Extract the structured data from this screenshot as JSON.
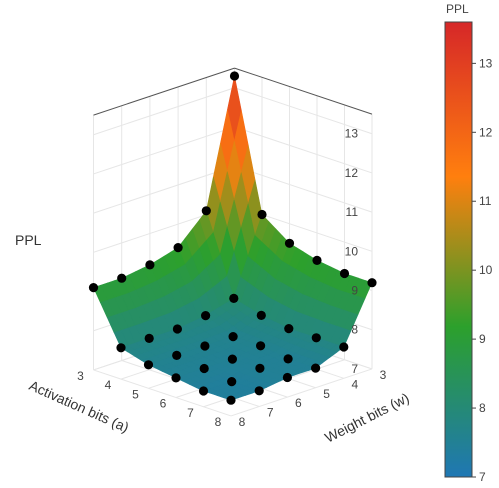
{
  "chart_data": {
    "type": "surface",
    "title": "",
    "zlabel": "PPL",
    "xlabel": "Weight bits (w)",
    "ylabel": "Activation bits (a)",
    "x_ticks": [
      "3",
      "4",
      "5",
      "6",
      "7",
      "8"
    ],
    "y_ticks": [
      "3",
      "4",
      "5",
      "6",
      "7",
      "8"
    ],
    "z_ticks": [
      "7",
      "8",
      "9",
      "10",
      "11",
      "12",
      "13"
    ],
    "zlim": [
      7,
      13.5
    ],
    "colorbar": {
      "title": "PPL",
      "ticks": [
        "7",
        "8",
        "9",
        "10",
        "11",
        "12",
        "13"
      ],
      "range": [
        7,
        13.6
      ],
      "colors": [
        "#1f77b4",
        "#2ca02c",
        "#ff7f0e",
        "#d62728"
      ]
    },
    "points": [
      {
        "a": 3,
        "w": 3,
        "ppl": 13.3
      },
      {
        "a": 3,
        "w": 4,
        "ppl": 10.1
      },
      {
        "a": 3,
        "w": 5,
        "ppl": 9.4
      },
      {
        "a": 3,
        "w": 6,
        "ppl": 9.2
      },
      {
        "a": 3,
        "w": 7,
        "ppl": 9.1
      },
      {
        "a": 3,
        "w": 8,
        "ppl": 9.1
      },
      {
        "a": 4,
        "w": 3,
        "ppl": 10.0
      },
      {
        "a": 4,
        "w": 4,
        "ppl": 8.1
      },
      {
        "a": 4,
        "w": 5,
        "ppl": 7.9
      },
      {
        "a": 4,
        "w": 6,
        "ppl": 7.8
      },
      {
        "a": 4,
        "w": 7,
        "ppl": 7.8
      },
      {
        "a": 4,
        "w": 8,
        "ppl": 7.8
      },
      {
        "a": 5,
        "w": 3,
        "ppl": 9.5
      },
      {
        "a": 5,
        "w": 4,
        "ppl": 7.9
      },
      {
        "a": 5,
        "w": 5,
        "ppl": 7.6
      },
      {
        "a": 5,
        "w": 6,
        "ppl": 7.6
      },
      {
        "a": 5,
        "w": 7,
        "ppl": 7.6
      },
      {
        "a": 5,
        "w": 8,
        "ppl": 7.6
      },
      {
        "a": 6,
        "w": 3,
        "ppl": 9.3
      },
      {
        "a": 6,
        "w": 4,
        "ppl": 7.8
      },
      {
        "a": 6,
        "w": 5,
        "ppl": 7.6
      },
      {
        "a": 6,
        "w": 6,
        "ppl": 7.5
      },
      {
        "a": 6,
        "w": 7,
        "ppl": 7.5
      },
      {
        "a": 6,
        "w": 8,
        "ppl": 7.5
      },
      {
        "a": 7,
        "w": 3,
        "ppl": 9.2
      },
      {
        "a": 7,
        "w": 4,
        "ppl": 7.8
      },
      {
        "a": 7,
        "w": 5,
        "ppl": 7.5
      },
      {
        "a": 7,
        "w": 6,
        "ppl": 7.5
      },
      {
        "a": 7,
        "w": 7,
        "ppl": 7.4
      },
      {
        "a": 7,
        "w": 8,
        "ppl": 7.4
      },
      {
        "a": 8,
        "w": 3,
        "ppl": 9.2
      },
      {
        "a": 8,
        "w": 4,
        "ppl": 7.8
      },
      {
        "a": 8,
        "w": 5,
        "ppl": 7.5
      },
      {
        "a": 8,
        "w": 6,
        "ppl": 7.5
      },
      {
        "a": 8,
        "w": 7,
        "ppl": 7.4
      },
      {
        "a": 8,
        "w": 8,
        "ppl": 7.4
      }
    ]
  }
}
